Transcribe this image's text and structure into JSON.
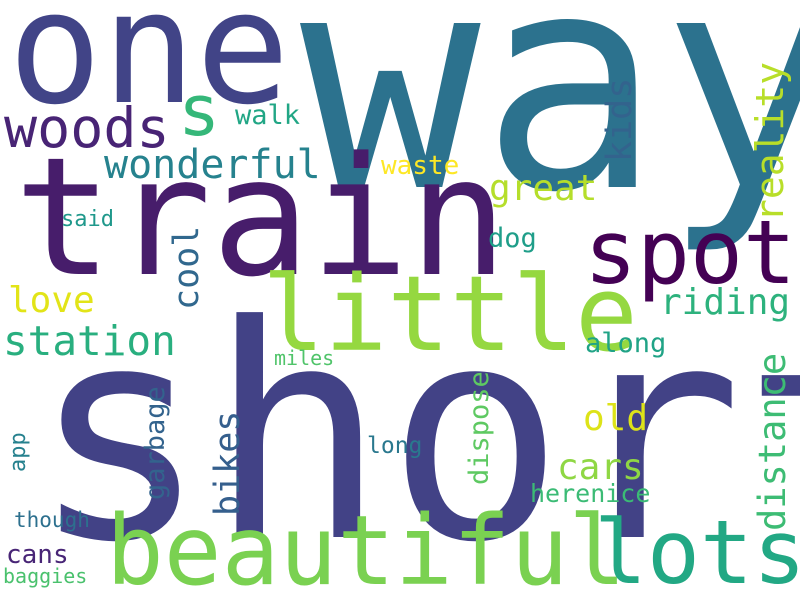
{
  "words": [
    {
      "text": "short",
      "color": "#424286",
      "vertical": false
    },
    {
      "text": "way",
      "color": "#2c728e",
      "vertical": false
    },
    {
      "text": "train",
      "color": "#471d6b",
      "vertical": false
    },
    {
      "text": "one",
      "color": "#414487",
      "vertical": false
    },
    {
      "text": "beautiful",
      "color": "#7ad151",
      "vertical": false
    },
    {
      "text": "little",
      "color": "#95d840",
      "vertical": false
    },
    {
      "text": "spot",
      "color": "#440154",
      "vertical": false
    },
    {
      "text": "lots",
      "color": "#22a884",
      "vertical": false
    },
    {
      "text": "woods",
      "color": "#482475",
      "vertical": false
    },
    {
      "text": "s",
      "color": "#35b779",
      "vertical": false
    },
    {
      "text": "wonderful",
      "color": "#26828e",
      "vertical": false
    },
    {
      "text": "station",
      "color": "#29af7f",
      "vertical": false
    },
    {
      "text": "great",
      "color": "#b5de2b",
      "vertical": false
    },
    {
      "text": "riding",
      "color": "#2db27d",
      "vertical": false
    },
    {
      "text": "love",
      "color": "#e2e418",
      "vertical": false
    },
    {
      "text": "cars",
      "color": "#8fd744",
      "vertical": false
    },
    {
      "text": "old",
      "color": "#dde318",
      "vertical": false
    },
    {
      "text": "walk",
      "color": "#21a685",
      "vertical": false
    },
    {
      "text": "waste",
      "color": "#fde725",
      "vertical": false
    },
    {
      "text": "along",
      "color": "#20a386",
      "vertical": false
    },
    {
      "text": "dog",
      "color": "#1f9e89",
      "vertical": false
    },
    {
      "text": "said",
      "color": "#1f988b",
      "vertical": false
    },
    {
      "text": "herenice",
      "color": "#3bbb75",
      "vertical": false
    },
    {
      "text": "long",
      "color": "#2a788e",
      "vertical": false
    },
    {
      "text": "miles",
      "color": "#50c46a",
      "vertical": false
    },
    {
      "text": "cans",
      "color": "#482576",
      "vertical": false
    },
    {
      "text": "though",
      "color": "#2d708e",
      "vertical": false
    },
    {
      "text": "baggies",
      "color": "#4ac16d",
      "vertical": false
    },
    {
      "text": "kids",
      "color": "#33638d",
      "vertical": true
    },
    {
      "text": "reality",
      "color": "#b8de29",
      "vertical": true
    },
    {
      "text": "cool",
      "color": "#31688e",
      "vertical": true
    },
    {
      "text": "distance",
      "color": "#3dbc74",
      "vertical": true
    },
    {
      "text": "bikes",
      "color": "#355f8d",
      "vertical": true
    },
    {
      "text": "garbage",
      "color": "#33638d",
      "vertical": true
    },
    {
      "text": "dispose",
      "color": "#5ec962",
      "vertical": true
    },
    {
      "text": "app",
      "color": "#26818e",
      "vertical": true
    }
  ]
}
